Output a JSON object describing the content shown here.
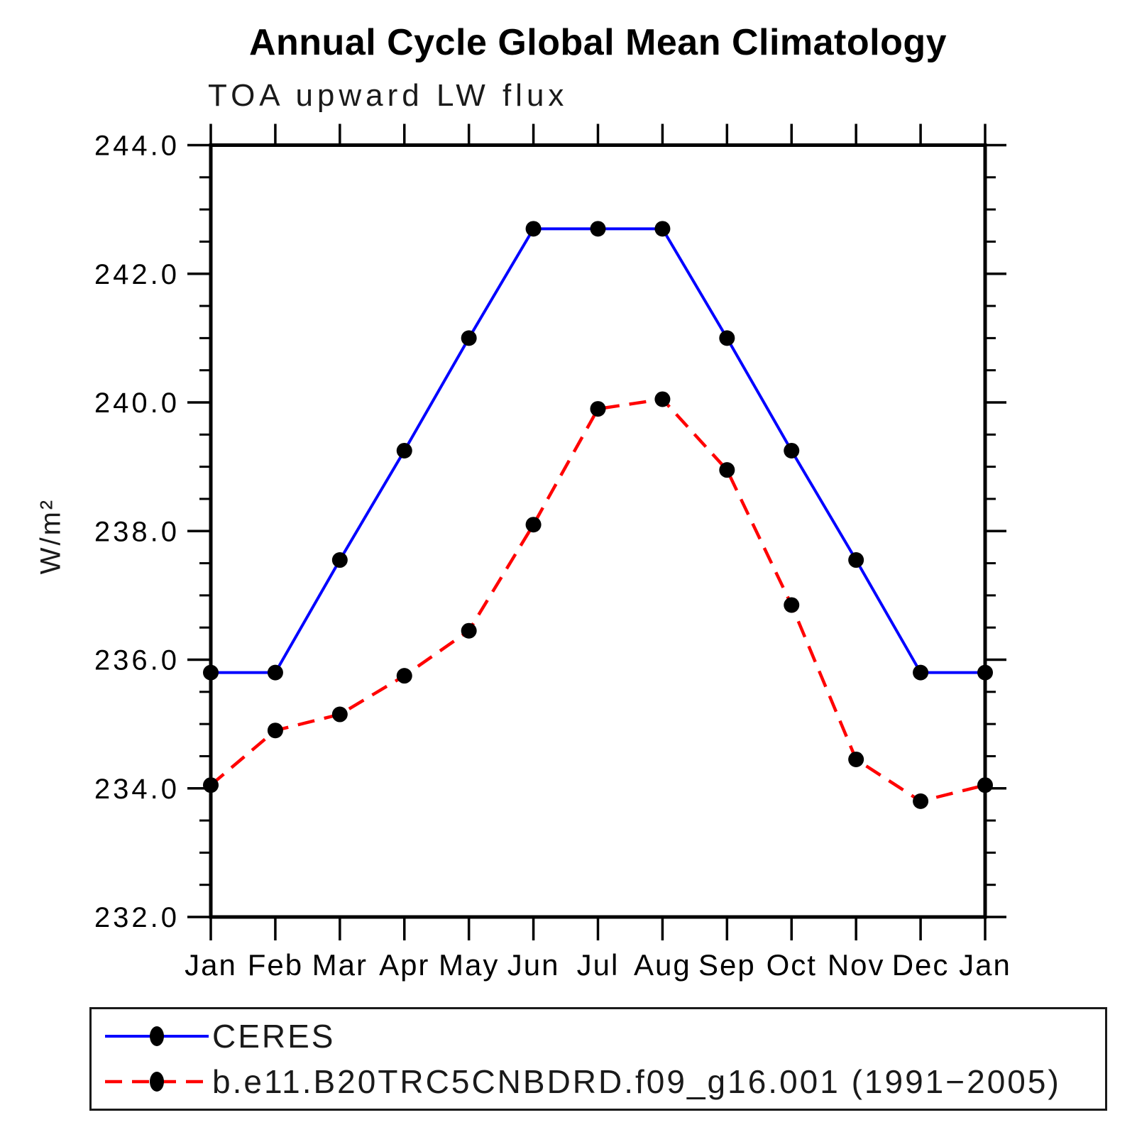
{
  "chart_data": {
    "type": "line",
    "title": "Annual Cycle Global Mean Climatology",
    "subtitle": "TOA upward LW flux",
    "ylabel": "W/m²",
    "xlabel": "",
    "ylim": [
      232.0,
      244.0
    ],
    "ytick_interval": 2.0,
    "yminor_interval": 0.5,
    "ytick_labels": [
      "244.0",
      "242.0",
      "240.0",
      "238.0",
      "236.0",
      "234.0",
      "232.0"
    ],
    "categories": [
      "Jan",
      "Feb",
      "Mar",
      "Apr",
      "May",
      "Jun",
      "Jul",
      "Aug",
      "Sep",
      "Oct",
      "Nov",
      "Dec",
      "Jan"
    ],
    "grid": false,
    "legend_position": "bottom",
    "axis_color": "#000000",
    "series": [
      {
        "name": "CERES",
        "color": "#0000ff",
        "line_style": "solid",
        "marker": "circle",
        "marker_color": "#000000",
        "values": [
          235.8,
          235.8,
          237.55,
          239.25,
          241.0,
          242.7,
          242.7,
          242.7,
          241.0,
          239.25,
          237.55,
          235.8,
          235.8
        ]
      },
      {
        "name": "b.e11.B20TRC5CNBDRD.f09_g16.001 (1991−2005)",
        "color": "#ff0000",
        "line_style": "dashed",
        "marker": "circle",
        "marker_color": "#000000",
        "values": [
          234.05,
          234.9,
          235.15,
          235.75,
          236.45,
          238.1,
          239.9,
          240.05,
          238.95,
          236.85,
          234.45,
          233.8,
          234.05
        ]
      }
    ]
  }
}
